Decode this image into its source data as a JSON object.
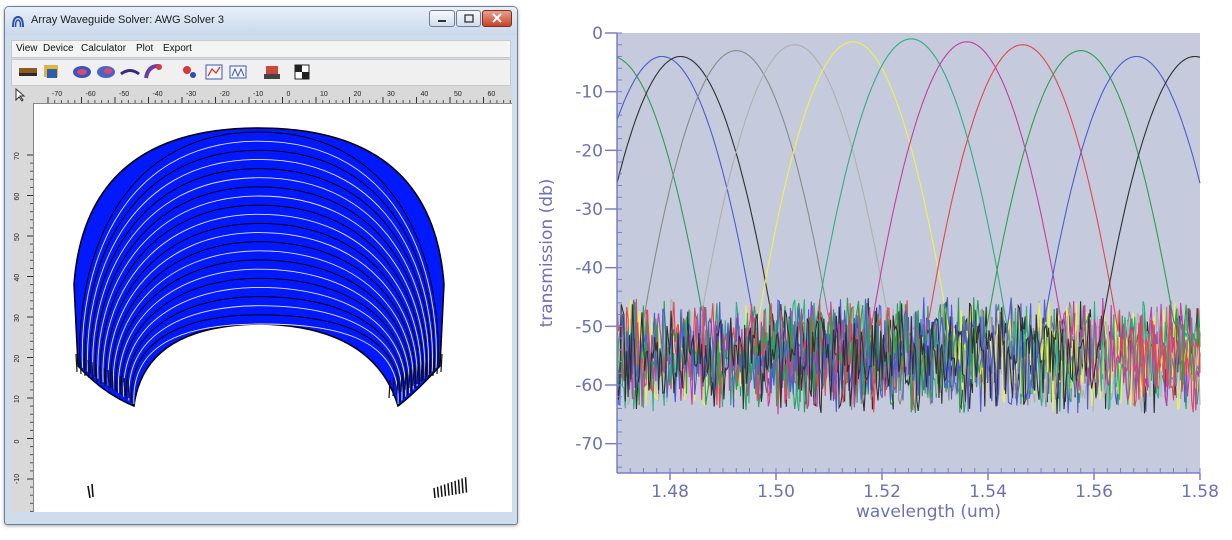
{
  "window": {
    "title": "Array Waveguide Solver: AWG Solver 3",
    "menu": [
      "View",
      "Device",
      "Calculator",
      "Plot",
      "Export"
    ],
    "toolbar_icons": [
      "layout-icon",
      "device-icon",
      "calculator-icon",
      "solve-icon",
      "waveguide-icon",
      "bend-icon",
      "mode-icon",
      "plot-icon",
      "spectrum-icon",
      "export-icon",
      "grid-icon"
    ],
    "ruler_top_labels": [
      "-70",
      "-60",
      "-50",
      "-40",
      "-30",
      "-20",
      "-10",
      "0",
      "10",
      "20",
      "30",
      "40",
      "50",
      "60",
      "70"
    ],
    "ruler_left_labels": [
      "70",
      "60",
      "50",
      "40",
      "30",
      "20",
      "10",
      "0",
      "-10"
    ],
    "device_color": "#0019ff"
  },
  "chart_data": {
    "type": "line",
    "xlabel": "wavelength (um)",
    "ylabel": "transmission (db)",
    "xlim": [
      1.47,
      1.58
    ],
    "ylim": [
      -75,
      0
    ],
    "xticks": [
      "1.48",
      "1.50",
      "1.52",
      "1.54",
      "1.56",
      "1.58"
    ],
    "yticks": [
      "0",
      "-10",
      "-20",
      "-30",
      "-40",
      "-50",
      "-60",
      "-70"
    ],
    "background": "#c5cbdd",
    "axis_color": "#7b7fc9",
    "noise_floor_db": -55,
    "series": [
      {
        "color": "#2e9c5a",
        "peak_wavelength": 1.469,
        "peak_db": -4
      },
      {
        "color": "#4b5bd4",
        "peak_wavelength": 1.4785,
        "peak_db": -4
      },
      {
        "color": "#303030",
        "peak_wavelength": 1.482,
        "peak_db": -4
      },
      {
        "color": "#8a8a8a",
        "peak_wavelength": 1.4925,
        "peak_db": -3
      },
      {
        "color": "#b0b0b0",
        "peak_wavelength": 1.5035,
        "peak_db": -2
      },
      {
        "color": "#f2f24a",
        "peak_wavelength": 1.5145,
        "peak_db": -1.5
      },
      {
        "color": "#2fae87",
        "peak_wavelength": 1.5255,
        "peak_db": -1
      },
      {
        "color": "#c83c9e",
        "peak_wavelength": 1.536,
        "peak_db": -1.5
      },
      {
        "color": "#e5454f",
        "peak_wavelength": 1.5465,
        "peak_db": -2
      },
      {
        "color": "#2aa14e",
        "peak_wavelength": 1.5575,
        "peak_db": -3
      },
      {
        "color": "#4b5bd4",
        "peak_wavelength": 1.568,
        "peak_db": -4
      },
      {
        "color": "#303030",
        "peak_wavelength": 1.579,
        "peak_db": -4
      }
    ]
  }
}
